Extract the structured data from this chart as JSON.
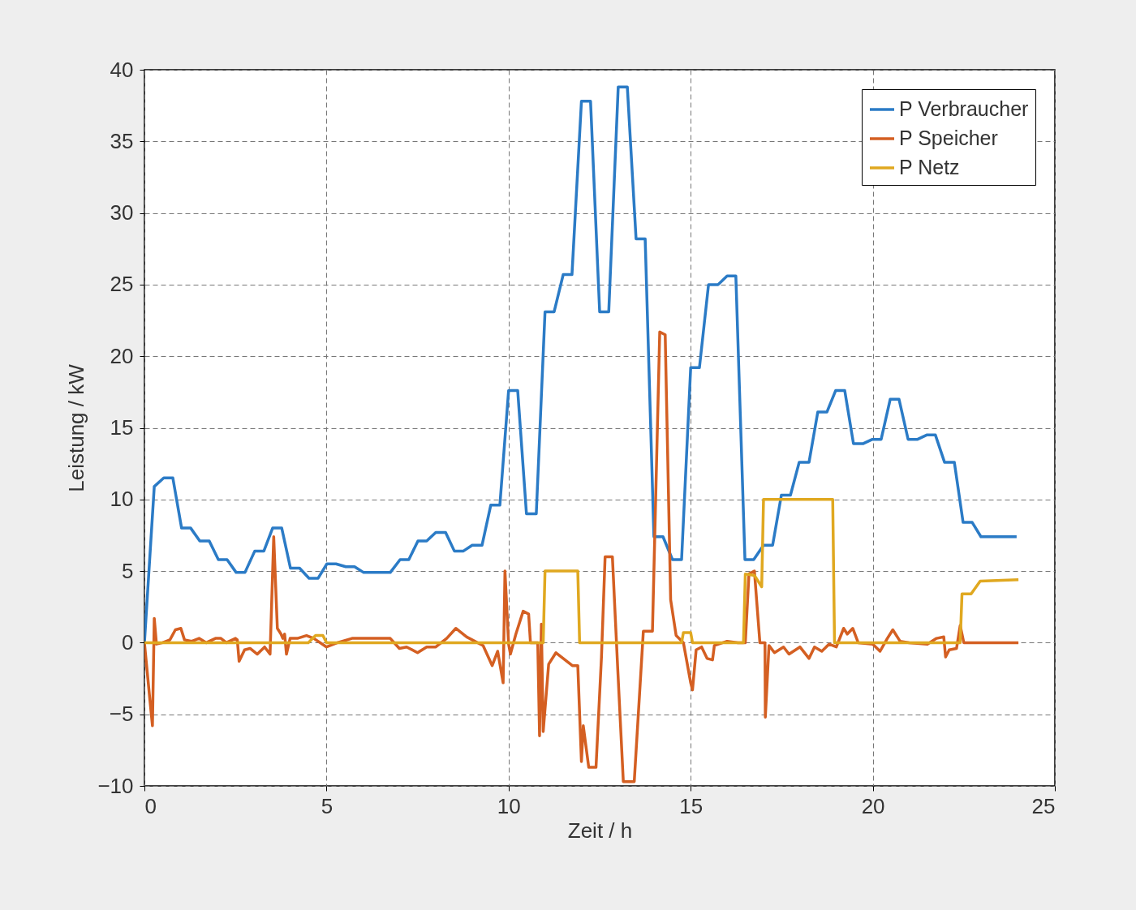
{
  "chart_data": {
    "type": "line",
    "xlabel": "Zeit / h",
    "ylabel": "Leistung / kW",
    "xlim": [
      0,
      25
    ],
    "xticks": [
      0,
      5,
      10,
      15,
      20,
      25
    ],
    "ylim": [
      -10,
      40
    ],
    "yticks": [
      -10,
      -5,
      0,
      5,
      10,
      15,
      20,
      25,
      30,
      35,
      40
    ],
    "grid": true,
    "legend": "top right",
    "series": [
      {
        "name": "P Verbraucher",
        "color": "#2b7bc6",
        "x": [
          0,
          0.27,
          0.53,
          0.78,
          1.02,
          1.27,
          1.52,
          1.78,
          2.03,
          2.27,
          2.52,
          2.76,
          3.03,
          3.28,
          3.52,
          3.77,
          4.01,
          4.26,
          4.52,
          4.77,
          5.01,
          5.26,
          5.53,
          5.77,
          6.02,
          6.75,
          7.02,
          7.26,
          7.51,
          7.75,
          8.0,
          8.27,
          8.51,
          8.76,
          9.0,
          9.27,
          9.51,
          9.76,
          10.0,
          10.25,
          10.49,
          10.76,
          11.0,
          11.25,
          11.5,
          11.74,
          12.0,
          12.25,
          12.5,
          12.75,
          13.01,
          13.26,
          13.5,
          13.75,
          13.99,
          14.24,
          14.5,
          14.75,
          15.0,
          15.24,
          15.49,
          15.75,
          16.0,
          16.24,
          16.49,
          16.73,
          17.0,
          17.25,
          17.49,
          17.74,
          17.98,
          18.25,
          18.49,
          18.74,
          18.98,
          19.23,
          19.47,
          19.74,
          19.99,
          20.23,
          20.48,
          20.72,
          20.97,
          21.23,
          21.48,
          21.72,
          21.97,
          22.24,
          22.48,
          22.73,
          22.97,
          23.95
        ],
        "values": [
          0,
          10.9,
          11.5,
          11.5,
          8.0,
          8.0,
          7.1,
          7.1,
          5.8,
          5.8,
          4.9,
          4.9,
          6.4,
          6.4,
          8.0,
          8.0,
          5.2,
          5.2,
          4.5,
          4.5,
          5.5,
          5.5,
          5.3,
          5.3,
          4.9,
          4.9,
          5.8,
          5.8,
          7.1,
          7.1,
          7.7,
          7.7,
          6.4,
          6.4,
          6.8,
          6.8,
          9.6,
          9.6,
          17.6,
          17.6,
          9.0,
          9.0,
          23.1,
          23.1,
          25.7,
          25.7,
          37.8,
          37.8,
          23.1,
          23.1,
          38.8,
          38.8,
          28.2,
          28.2,
          7.4,
          7.4,
          5.8,
          5.8,
          19.2,
          19.2,
          25.0,
          25.0,
          25.6,
          25.6,
          5.8,
          5.8,
          6.8,
          6.8,
          10.3,
          10.3,
          12.6,
          12.6,
          16.1,
          16.1,
          17.6,
          17.6,
          13.9,
          13.9,
          14.2,
          14.2,
          17.0,
          17.0,
          14.2,
          14.2,
          14.5,
          14.5,
          12.6,
          12.6,
          8.4,
          8.4,
          7.4,
          7.4
        ]
      },
      {
        "name": "P Speicher",
        "color": "#d45f22",
        "x": [
          0,
          0.15,
          0.22,
          0.27,
          0.33,
          0.5,
          0.7,
          0.85,
          1.0,
          1.1,
          1.3,
          1.5,
          1.7,
          1.95,
          2.1,
          2.25,
          2.5,
          2.55,
          2.6,
          2.75,
          2.9,
          3.1,
          3.3,
          3.45,
          3.55,
          3.65,
          3.75,
          3.8,
          3.85,
          3.9,
          4.0,
          4.2,
          4.45,
          4.65,
          5.0,
          5.3,
          5.7,
          6.0,
          6.5,
          6.75,
          7.0,
          7.2,
          7.5,
          7.75,
          8.0,
          8.3,
          8.55,
          8.85,
          9.3,
          9.55,
          9.7,
          9.85,
          9.9,
          10.0,
          10.05,
          10.2,
          10.4,
          10.55,
          10.6,
          10.8,
          10.85,
          10.9,
          10.95,
          11.1,
          11.3,
          11.5,
          11.75,
          11.9,
          12.0,
          12.05,
          12.2,
          12.4,
          12.55,
          12.65,
          12.85,
          13.0,
          13.15,
          13.45,
          13.7,
          13.95,
          14.15,
          14.3,
          14.45,
          14.6,
          14.8,
          15.0,
          15.05,
          15.15,
          15.3,
          15.45,
          15.6,
          15.65,
          16.0,
          16.3,
          16.5,
          16.6,
          16.75,
          16.9,
          17.04,
          17.05,
          17.15,
          17.3,
          17.55,
          17.7,
          18.0,
          18.25,
          18.4,
          18.6,
          18.8,
          19.0,
          19.2,
          19.3,
          19.45,
          19.6,
          20.0,
          20.2,
          20.4,
          20.55,
          20.75,
          21.0,
          21.5,
          21.75,
          21.95,
          22.0,
          22.1,
          22.3,
          22.4,
          22.5,
          24.0
        ],
        "values": [
          0,
          -4,
          -5.8,
          1.7,
          -0.1,
          0,
          0.2,
          0.9,
          1.0,
          0.2,
          0.1,
          0.3,
          0,
          0.3,
          0.3,
          0,
          0.3,
          0.2,
          -1.3,
          -0.5,
          -0.4,
          -0.8,
          -0.3,
          -0.8,
          7.4,
          1.0,
          0.6,
          0.3,
          0.6,
          -0.8,
          0.3,
          0.3,
          0.5,
          0.3,
          -0.3,
          0,
          0.3,
          0.3,
          0.3,
          0.3,
          -0.4,
          -0.3,
          -0.7,
          -0.3,
          -0.3,
          0.3,
          1.0,
          0.4,
          -0.2,
          -1.6,
          -0.6,
          -2.8,
          5.0,
          -0.1,
          -0.8,
          0.6,
          2.2,
          2.0,
          0,
          0,
          -6.5,
          1.3,
          -6.2,
          -1.5,
          -0.7,
          -1.1,
          -1.6,
          -1.6,
          -8.3,
          -5.8,
          -8.7,
          -8.7,
          -1,
          6.0,
          6.0,
          -2,
          -9.7,
          -9.7,
          0.8,
          0.8,
          21.7,
          21.5,
          3.0,
          0.5,
          0,
          -2.8,
          -3.3,
          -0.5,
          -0.3,
          -1.1,
          -1.2,
          -0.2,
          0.1,
          0,
          0,
          4.8,
          5.0,
          0,
          0,
          -5.2,
          -0.2,
          -0.7,
          -0.3,
          -0.8,
          -0.3,
          -1.1,
          -0.3,
          -0.6,
          -0.1,
          -0.3,
          1.0,
          0.6,
          1.0,
          0,
          -0.1,
          -0.6,
          0.3,
          0.9,
          0.1,
          0,
          -0.1,
          0.3,
          0.4,
          -1.0,
          -0.5,
          -0.4,
          1.2,
          0,
          0
        ]
      },
      {
        "name": "P Netz",
        "color": "#e0a820",
        "x": [
          0,
          4.5,
          4.7,
          4.9,
          5.0,
          10.95,
          11.0,
          11.9,
          11.95,
          14.75,
          14.8,
          15.0,
          15.05,
          16.45,
          16.5,
          16.75,
          16.95,
          17.0,
          18.9,
          18.95,
          22.4,
          22.45,
          22.7,
          22.95,
          24.0
        ],
        "values": [
          0,
          0,
          0.5,
          0.5,
          0,
          0,
          5.0,
          5.0,
          0,
          0,
          0.7,
          0.7,
          0,
          0,
          4.8,
          4.7,
          3.9,
          10.0,
          10.0,
          0,
          0,
          3.4,
          3.4,
          4.3,
          4.4
        ]
      }
    ]
  }
}
